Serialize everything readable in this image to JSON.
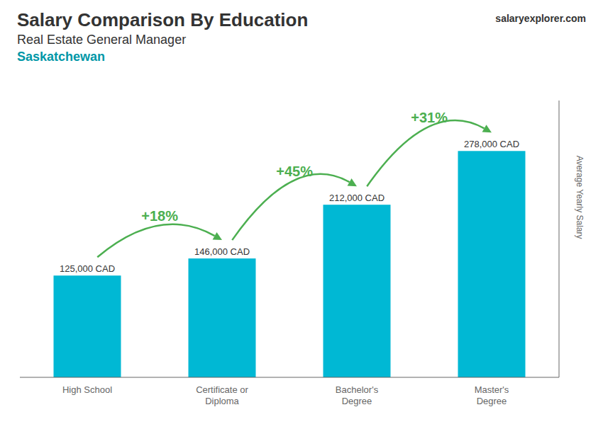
{
  "chart_data": {
    "type": "bar",
    "title": "Salary Comparison By Education",
    "subtitle": "Real Estate General Manager",
    "region": "Saskatchewan",
    "source": "salaryexplorer.com",
    "categories": [
      "High School",
      "Certificate or\nDiploma",
      "Bachelor's\nDegree",
      "Master's\nDegree"
    ],
    "values": [
      125000,
      146000,
      212000,
      278000
    ],
    "value_labels": [
      "125,000 CAD",
      "146,000 CAD",
      "212,000 CAD",
      "278,000 CAD"
    ],
    "data_labels": true,
    "annotations": [
      "+18%",
      "+45%",
      "+31%"
    ],
    "color": "#00b8d4",
    "ylabel": "Average Yearly Salary",
    "ylim": [
      0,
      340000
    ],
    "tick_labels": "x",
    "grid": false
  }
}
